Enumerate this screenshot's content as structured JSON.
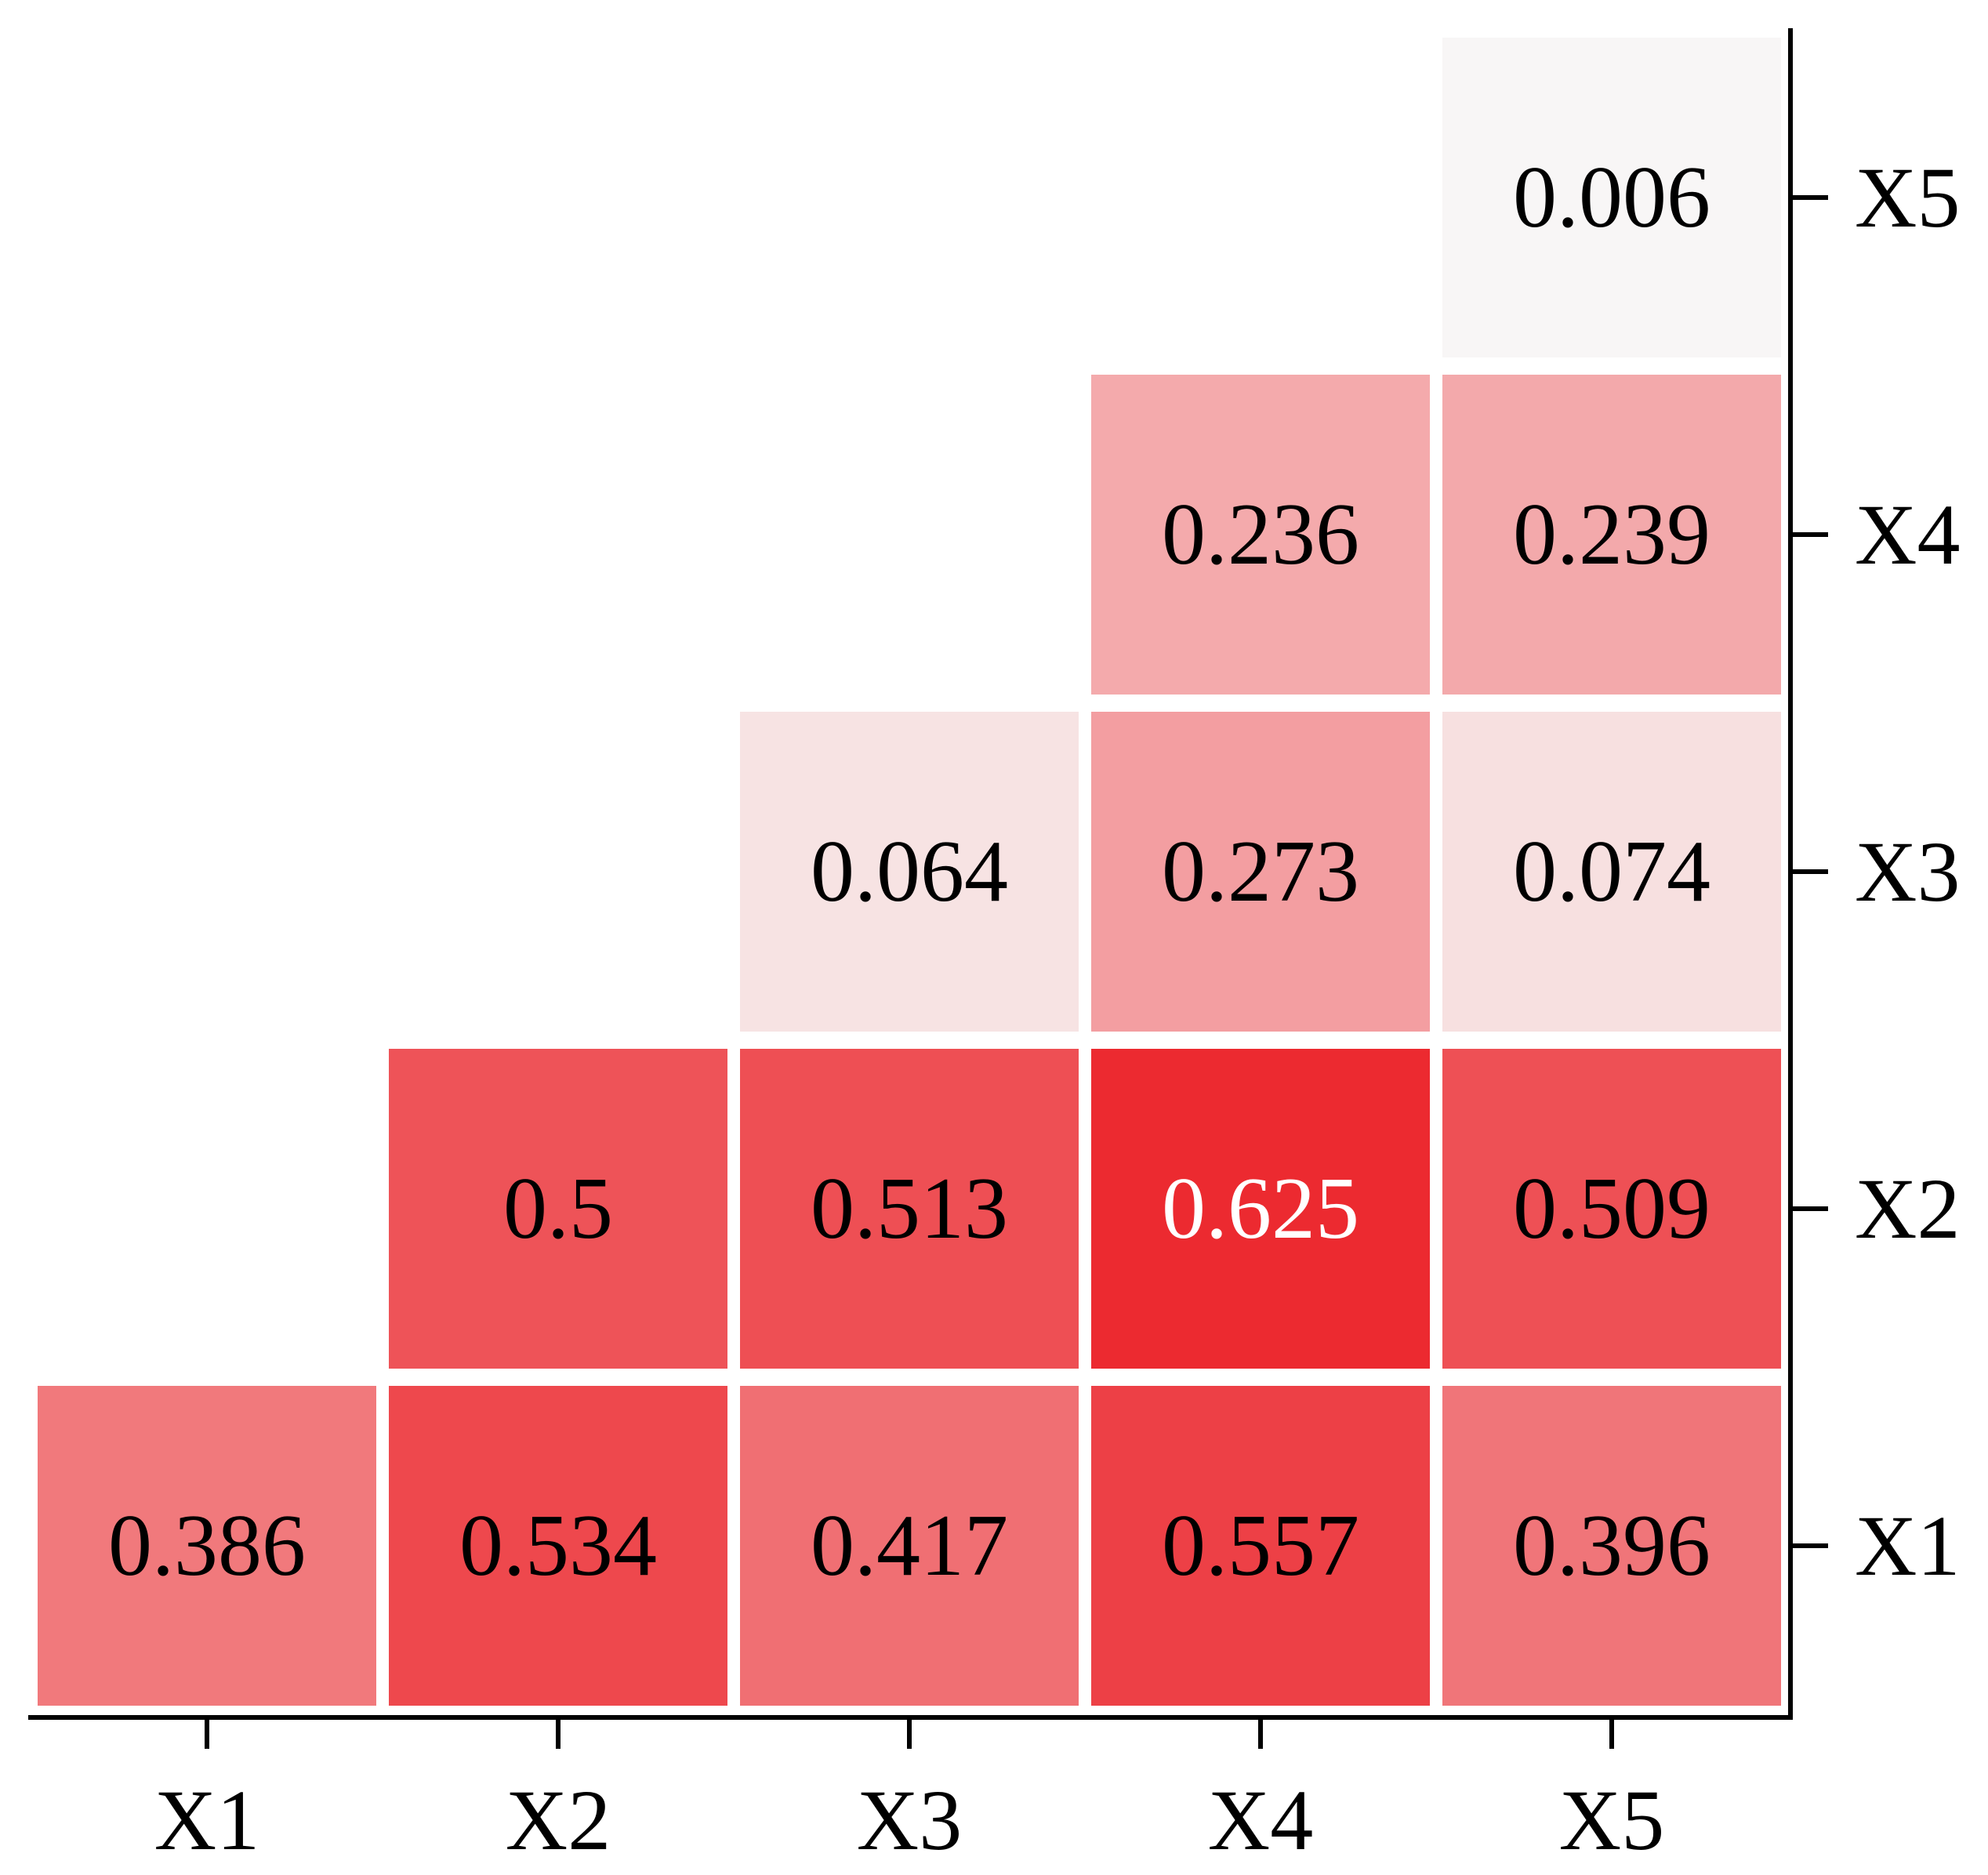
{
  "chart_data": {
    "type": "heatmap",
    "x_categories": [
      "X1",
      "X2",
      "X3",
      "X4",
      "X5"
    ],
    "y_categories": [
      "X1",
      "X2",
      "X3",
      "X4",
      "X5"
    ],
    "values": [
      [
        0.386,
        0.534,
        0.417,
        0.557,
        0.396
      ],
      [
        null,
        0.5,
        0.513,
        0.625,
        0.509
      ],
      [
        null,
        null,
        0.064,
        0.273,
        0.074
      ],
      [
        null,
        null,
        null,
        0.236,
        0.239
      ],
      [
        null,
        null,
        null,
        null,
        0.006
      ]
    ],
    "colors": [
      "#f8f6f6",
      "#ec2a30"
    ],
    "y_axis_side": "right"
  }
}
